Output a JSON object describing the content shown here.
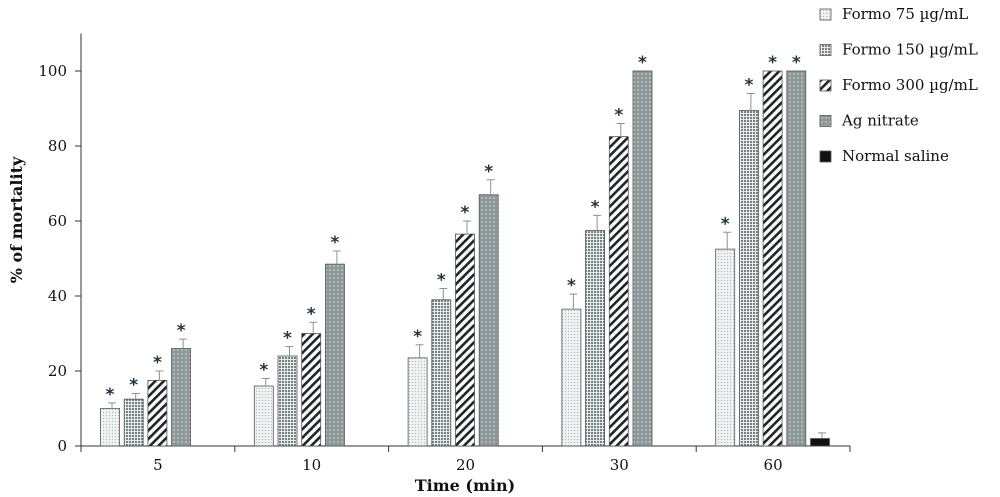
{
  "chart_data": {
    "type": "bar",
    "xlabel": "Time (min)",
    "ylabel": "% of mortality",
    "ylim": [
      0,
      110
    ],
    "yticks": [
      0,
      20,
      40,
      60,
      80,
      100
    ],
    "categories": [
      "5",
      "10",
      "20",
      "30",
      "60"
    ],
    "significance_marker": "*",
    "legend_position": "top-right",
    "series": [
      {
        "name": "Formo 75 µg/mL",
        "color": "#e3e9e9",
        "pattern": "fine-dots",
        "values": [
          10,
          16,
          23.5,
          36.5,
          52.5
        ],
        "errors": [
          1.5,
          2,
          3.5,
          4,
          4.5
        ],
        "significant": [
          true,
          true,
          true,
          true,
          true
        ]
      },
      {
        "name": "Formo  150 µg/mL",
        "color": "#c8d0d0",
        "pattern": "dense-dots",
        "values": [
          12.5,
          24,
          39,
          57.5,
          89.5
        ],
        "errors": [
          1.5,
          2.5,
          3,
          4,
          4.5
        ],
        "significant": [
          true,
          true,
          true,
          true,
          true
        ]
      },
      {
        "name": "Formo 300 µg/mL",
        "color": "#ffffff",
        "pattern": "diagonal-hatch",
        "values": [
          17.5,
          30,
          56.5,
          82.5,
          100
        ],
        "errors": [
          2.5,
          3,
          3.5,
          3.5,
          0
        ],
        "significant": [
          true,
          true,
          true,
          true,
          true
        ]
      },
      {
        "name": "Ag nitrate",
        "color": "#8e9a9c",
        "pattern": "light-dots",
        "values": [
          26,
          48.5,
          67,
          100,
          100
        ],
        "errors": [
          2.5,
          3.5,
          4,
          0,
          0
        ],
        "significant": [
          true,
          true,
          true,
          true,
          true
        ]
      },
      {
        "name": "Normal saline",
        "color": "#111111",
        "pattern": "solid",
        "values": [
          0,
          0,
          0,
          0,
          2
        ],
        "errors": [
          0,
          0,
          0,
          0,
          1.5
        ],
        "significant": [
          false,
          false,
          false,
          false,
          false
        ]
      }
    ]
  }
}
